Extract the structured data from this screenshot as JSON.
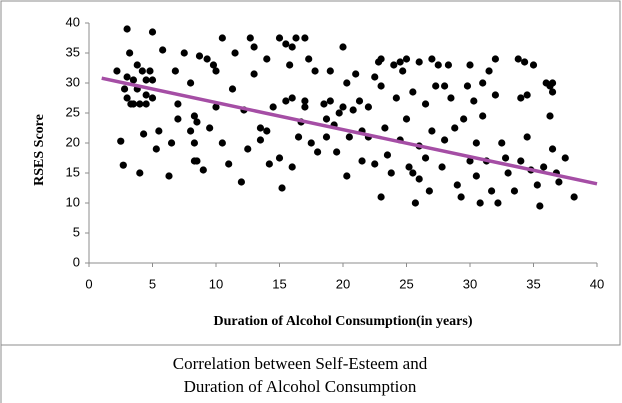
{
  "chart_data": {
    "type": "scatter",
    "xlabel": "Duration of Alcohol Consumption(in years)",
    "ylabel": "RSES Score",
    "caption": [
      "Correlation between Self-Esteem and",
      "Duration of Alcohol Consumption"
    ],
    "xlim": [
      0,
      40
    ],
    "xticks": [
      0,
      5,
      10,
      15,
      20,
      25,
      30,
      35,
      40
    ],
    "ylim": [
      0,
      40
    ],
    "yticks": [
      0,
      5,
      10,
      15,
      20,
      25,
      30,
      35,
      40
    ],
    "color": "#000000",
    "x": [
      2.2,
      2.5,
      2.7,
      2.8,
      3,
      3,
      3.2,
      3,
      3.3,
      3.5,
      3.8,
      4,
      4.2,
      4.5,
      4.5,
      4.8,
      4.3,
      4,
      4.5,
      5,
      5,
      5,
      5.3,
      5.5,
      5.8,
      3.5,
      3.8,
      6.3,
      6.5,
      6.8,
      7,
      7,
      7.5,
      8,
      8,
      8.3,
      8.3,
      8.3,
      8.5,
      8.5,
      8.7,
      9,
      9.3,
      9.5,
      9.8,
      10,
      10,
      10.5,
      10.5,
      11,
      11.3,
      11.5,
      12,
      12.2,
      12.5,
      12.7,
      13,
      13,
      13.5,
      13.5,
      14,
      14,
      14.2,
      14.5,
      15,
      15,
      15.2,
      15.5,
      15.5,
      15.8,
      16,
      16,
      16,
      16.3,
      16.5,
      16.7,
      17,
      17,
      17.3,
      17,
      17.5,
      17.8,
      18,
      18.5,
      18.7,
      18.7,
      19,
      19,
      19.3,
      19.5,
      19.7,
      20,
      20,
      20.3,
      20.3,
      20.5,
      20.8,
      21,
      21.3,
      21.5,
      21.5,
      22,
      22,
      22.5,
      22.5,
      22.8,
      23,
      23,
      23,
      23.3,
      23.5,
      23.8,
      24,
      24.2,
      24.5,
      24.5,
      24.7,
      25,
      25,
      25.2,
      25.5,
      25.5,
      25.7,
      26,
      26,
      26,
      26.5,
      26.5,
      26.8,
      27,
      27,
      27.3,
      27.5,
      27.8,
      28,
      28,
      28.3,
      28.5,
      28.8,
      29,
      29.3,
      29.5,
      29.8,
      30,
      30,
      30.3,
      30.5,
      30.5,
      30.8,
      31,
      31,
      31.3,
      31.5,
      31.7,
      32,
      32,
      32.2,
      32.5,
      32.8,
      33,
      33.5,
      33.8,
      34,
      34,
      34.3,
      34.5,
      34.5,
      34.8,
      35,
      35.3,
      35.5,
      35.8,
      36,
      36.3,
      36.5,
      36.5,
      36.3,
      36.5,
      36.8,
      37,
      37.5,
      38.2
    ],
    "values": [
      32,
      20.3,
      16.3,
      29,
      39,
      31,
      35,
      27.5,
      26.5,
      30.5,
      29,
      26.5,
      32,
      30.5,
      28,
      32,
      21.5,
      15,
      26.5,
      27.5,
      30.5,
      38.5,
      19,
      22,
      35.5,
      26.5,
      33,
      14.5,
      20,
      32,
      24,
      26.5,
      35,
      22,
      30,
      24.5,
      20,
      17,
      23.5,
      17,
      34.5,
      15.5,
      34,
      22.5,
      33,
      32,
      26,
      37.5,
      20,
      16.5,
      29,
      35,
      13.5,
      25.5,
      19,
      37.5,
      36,
      31.5,
      20.5,
      22.5,
      34,
      22,
      16.5,
      26,
      37.5,
      17.5,
      12.5,
      36.5,
      27,
      33,
      36,
      16,
      27.5,
      37.5,
      21,
      23.5,
      37.5,
      27,
      34,
      26,
      20,
      32,
      18.5,
      26.5,
      24,
      21,
      32,
      27,
      23,
      18.5,
      25,
      36,
      26,
      30,
      14.5,
      21,
      25.5,
      31.5,
      27,
      22,
      17,
      26,
      21,
      16.5,
      31,
      33.5,
      34,
      11,
      29.5,
      22.5,
      18,
      15,
      33,
      27.5,
      20.5,
      33.5,
      32,
      34,
      24,
      16,
      15,
      28.5,
      10,
      33.5,
      19.5,
      14,
      17.5,
      26.5,
      12,
      34,
      22,
      29.5,
      33,
      16,
      29.5,
      20.5,
      33,
      27.5,
      22.5,
      13,
      11,
      24,
      29.5,
      33,
      17,
      27,
      20,
      14.5,
      10,
      30,
      24.5,
      17,
      32,
      12,
      34,
      28,
      10,
      20,
      17.5,
      15,
      12,
      34,
      27.5,
      17,
      33.5,
      28,
      21,
      15.5,
      33,
      13,
      9.5,
      16,
      30,
      29.5,
      30,
      28.5,
      24.5,
      19,
      15,
      13.5,
      17.5,
      11
    ],
    "trendline": {
      "x": [
        1,
        40
      ],
      "values": [
        30.8,
        13.2
      ],
      "color": "#a54ea5"
    }
  }
}
